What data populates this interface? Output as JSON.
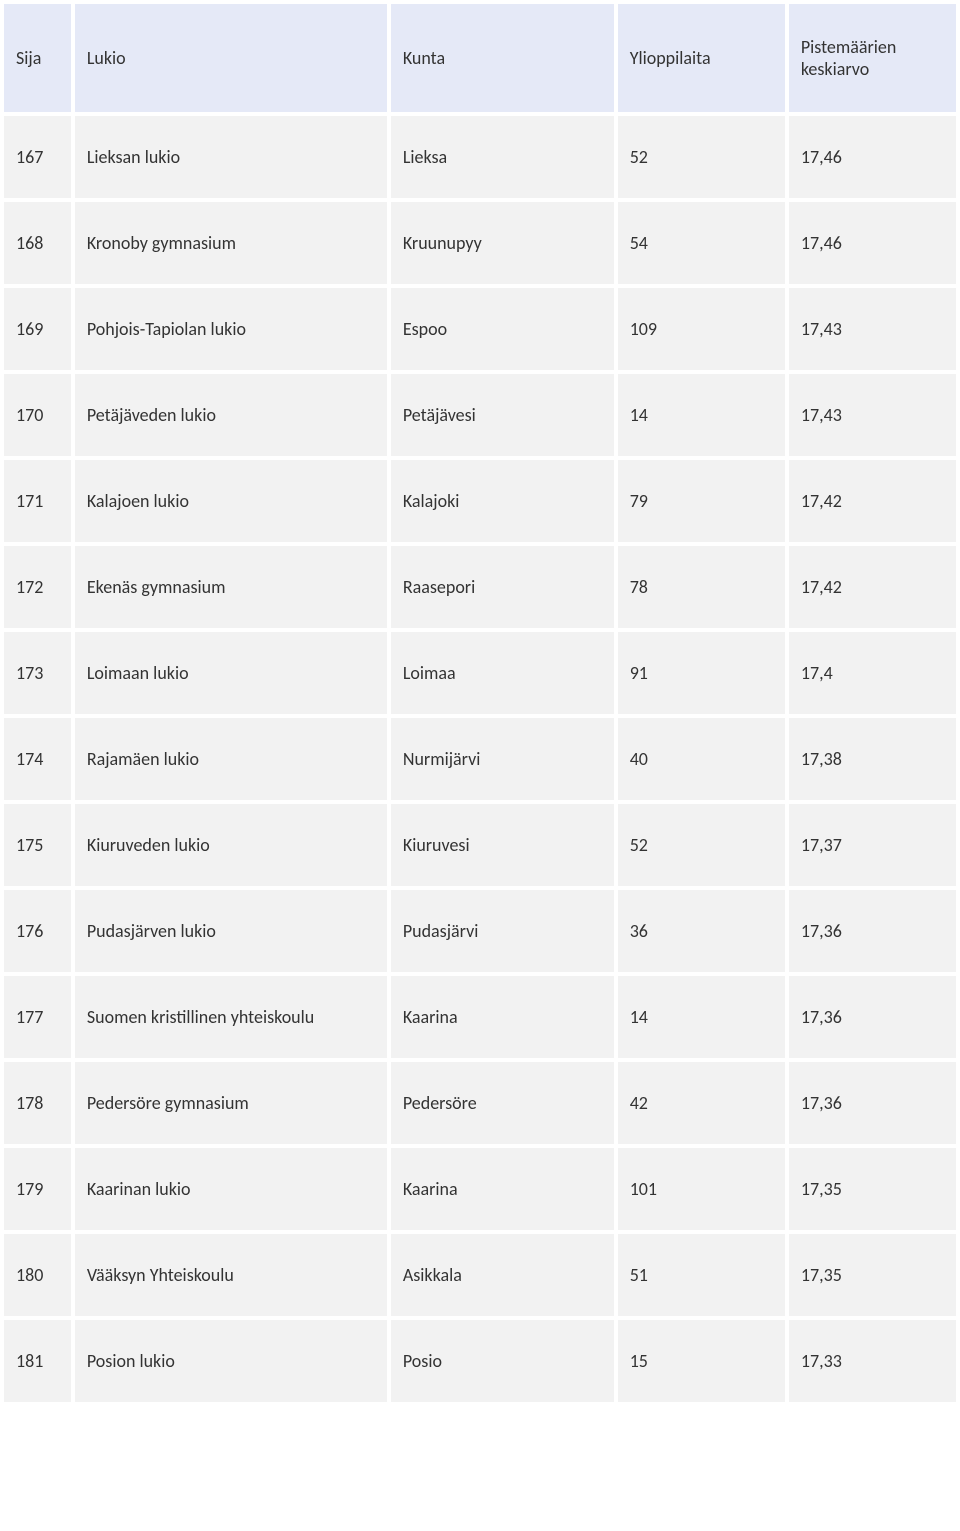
{
  "table": {
    "headers": {
      "sija": "Sija",
      "lukio": "Lukio",
      "kunta": "Kunta",
      "ylioppilaita": "Ylioppilaita",
      "keskiarvo": "Pistemäärien keskiarvo"
    },
    "rows": [
      {
        "sija": "167",
        "lukio": "Lieksan lukio",
        "kunta": "Lieksa",
        "ylioppilaita": "52",
        "keskiarvo": "17,46"
      },
      {
        "sija": "168",
        "lukio": "Kronoby gymnasium",
        "kunta": "Kruunupyy",
        "ylioppilaita": "54",
        "keskiarvo": "17,46"
      },
      {
        "sija": "169",
        "lukio": "Pohjois-Tapiolan lukio",
        "kunta": "Espoo",
        "ylioppilaita": "109",
        "keskiarvo": "17,43"
      },
      {
        "sija": "170",
        "lukio": "Petäjäveden lukio",
        "kunta": "Petäjävesi",
        "ylioppilaita": "14",
        "keskiarvo": "17,43"
      },
      {
        "sija": "171",
        "lukio": "Kalajoen lukio",
        "kunta": "Kalajoki",
        "ylioppilaita": "79",
        "keskiarvo": "17,42"
      },
      {
        "sija": "172",
        "lukio": "Ekenäs gymnasium",
        "kunta": "Raasepori",
        "ylioppilaita": "78",
        "keskiarvo": "17,42"
      },
      {
        "sija": "173",
        "lukio": "Loimaan lukio",
        "kunta": "Loimaa",
        "ylioppilaita": "91",
        "keskiarvo": "17,4"
      },
      {
        "sija": "174",
        "lukio": "Rajamäen lukio",
        "kunta": "Nurmijärvi",
        "ylioppilaita": "40",
        "keskiarvo": "17,38"
      },
      {
        "sija": "175",
        "lukio": "Kiuruveden lukio",
        "kunta": "Kiuruvesi",
        "ylioppilaita": "52",
        "keskiarvo": "17,37"
      },
      {
        "sija": "176",
        "lukio": "Pudasjärven lukio",
        "kunta": "Pudasjärvi",
        "ylioppilaita": "36",
        "keskiarvo": "17,36"
      },
      {
        "sija": "177",
        "lukio": "Suomen kristillinen yhteiskoulu",
        "kunta": "Kaarina",
        "ylioppilaita": "14",
        "keskiarvo": "17,36"
      },
      {
        "sija": "178",
        "lukio": "Pedersöre gymnasium",
        "kunta": "Pedersöre",
        "ylioppilaita": "42",
        "keskiarvo": "17,36"
      },
      {
        "sija": "179",
        "lukio": "Kaarinan lukio",
        "kunta": "Kaarina",
        "ylioppilaita": "101",
        "keskiarvo": "17,35"
      },
      {
        "sija": "180",
        "lukio": "Vääksyn Yhteiskoulu",
        "kunta": "Asikkala",
        "ylioppilaita": "51",
        "keskiarvo": "17,35"
      },
      {
        "sija": "181",
        "lukio": "Posion lukio",
        "kunta": "Posio",
        "ylioppilaita": "15",
        "keskiarvo": "17,33"
      }
    ],
    "styling": {
      "header_bg": "#e5e9f7",
      "row_bg": "#f2f2f2",
      "text_color": "#333333",
      "font_size": 18,
      "font_family": "Calibri",
      "cell_spacing": 4,
      "column_widths": {
        "sija": 60,
        "lukio": 280,
        "kunta": 200,
        "ylioppilaita": 150,
        "keskiarvo": 150
      }
    }
  }
}
